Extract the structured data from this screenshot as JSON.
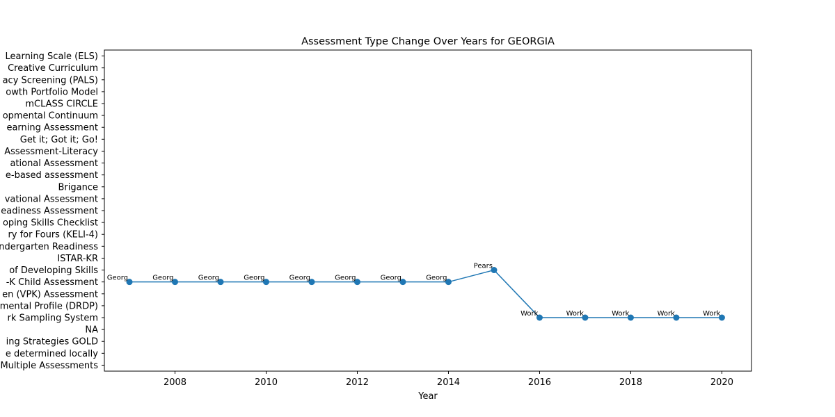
{
  "chart_data": {
    "type": "line",
    "title": "Assessment Type Change Over Years for GEORGIA",
    "xlabel": "Year",
    "ylabel": "",
    "x": [
      2007,
      2008,
      2009,
      2010,
      2011,
      2012,
      2013,
      2014,
      2015,
      2016,
      2017,
      2018,
      2019,
      2020
    ],
    "y_categories_bottom_to_top": [
      "Multiple Assessments",
      "e determined locally",
      "ing Strategies GOLD",
      "NA",
      "rk Sampling System",
      "mental Profile (DRDP)",
      "en (VPK) Assessment",
      "-K Child Assessment",
      "of Developing Skills",
      "ISTAR-KR",
      "ndergarten Readiness",
      "ry for Fours (KELI-4) ",
      "oping Skills Checklist",
      "eadiness Assessment",
      "vational Assessment",
      "Brigance",
      "e-based assessment",
      "ational Assessment ",
      "Assessment-Literacy",
      "Get it; Got it; Go!",
      "earning Assessment",
      "opmental Continuum",
      "mCLASS CIRCLE",
      "owth Portfolio Model",
      "acy Screening (PALS)",
      "Creative Curriculum",
      "Learning Scale (ELS)"
    ],
    "x_ticks": [
      2008,
      2010,
      2012,
      2014,
      2016,
      2018,
      2020
    ],
    "xlim": [
      2006.45,
      2020.65
    ],
    "series": [
      {
        "values": [
          "-K Child Assessment",
          "-K Child Assessment",
          "-K Child Assessment",
          "-K Child Assessment",
          "-K Child Assessment",
          "-K Child Assessment",
          "-K Child Assessment",
          "-K Child Assessment",
          "of Developing Skills",
          "rk Sampling System",
          "rk Sampling System",
          "rk Sampling System",
          "rk Sampling System",
          "rk Sampling System"
        ],
        "point_labels": [
          "Georg",
          "Georg",
          "Georg",
          "Georg",
          "Georg",
          "Georg",
          "Georg",
          "Georg",
          "Pears",
          "Work",
          "Work",
          "Work",
          "Work",
          "Work"
        ],
        "color": "#1f77b4"
      }
    ],
    "grid": false,
    "legend": "none"
  }
}
